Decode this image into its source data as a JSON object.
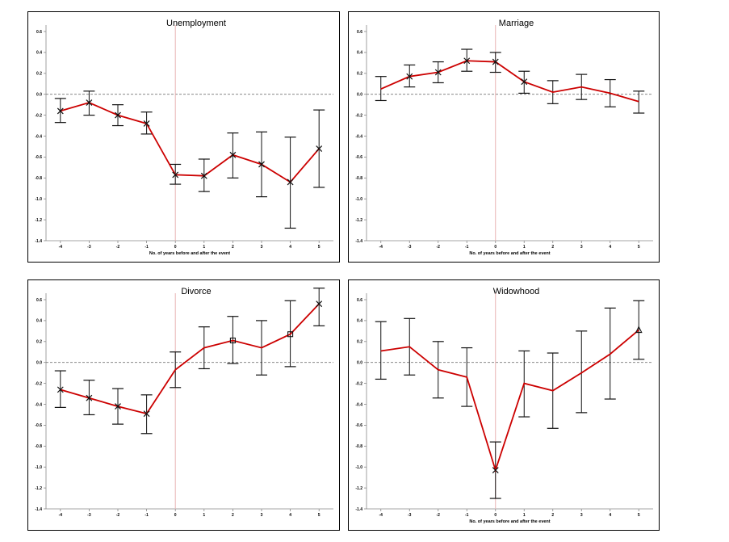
{
  "chart_data": [
    {
      "type": "line",
      "title": "Unemployment",
      "xlabel": "No. of years before and after the event",
      "ylabel": "",
      "ylim": [
        -1.4,
        0.6
      ],
      "x": [
        -4,
        -3,
        -2,
        -1,
        0,
        1,
        2,
        3,
        4,
        5
      ],
      "yticks": [
        "0.6",
        "0.4",
        "0.2",
        "0.0",
        "-0.2",
        "-0.4",
        "-0.6",
        "-0.8",
        "-1.0",
        "-1.2",
        "-1.4"
      ],
      "ytick_values": [
        0.6,
        0.4,
        0.2,
        0.0,
        -0.2,
        -0.4,
        -0.6,
        -0.8,
        -1.0,
        -1.2,
        -1.4
      ],
      "xticks": [
        "-4",
        "-3",
        "-2",
        "-1",
        "0",
        "1",
        "2",
        "3",
        "4",
        "5"
      ],
      "series": [
        {
          "values": [
            -0.16,
            -0.08,
            -0.2,
            -0.28,
            -0.77,
            -0.78,
            -0.58,
            -0.67,
            -0.84,
            -0.52
          ],
          "lower": [
            -0.27,
            -0.2,
            -0.3,
            -0.38,
            -0.86,
            -0.93,
            -0.8,
            -0.98,
            -1.28,
            -0.89
          ],
          "upper": [
            -0.04,
            0.03,
            -0.1,
            -0.17,
            -0.67,
            -0.62,
            -0.37,
            -0.36,
            -0.41,
            -0.15
          ],
          "markers": [
            "x",
            "x",
            "x",
            "x",
            "x",
            "x",
            "x",
            "x",
            "x",
            "x"
          ]
        }
      ],
      "reference_line_y": 0,
      "event_line_x": 0,
      "grid": false,
      "line_color": "#cc0000",
      "event_line_color": "#e8b4b4"
    },
    {
      "type": "line",
      "title": "Marriage",
      "xlabel": "No. of years before and after the event",
      "ylabel": "",
      "ylim": [
        -1.4,
        0.6
      ],
      "x": [
        -4,
        -3,
        -2,
        -1,
        0,
        1,
        2,
        3,
        4,
        5
      ],
      "yticks": [
        "0.6",
        "0.4",
        "0.2",
        "0.0",
        "-0.2",
        "-0.4",
        "-0.6",
        "-0.8",
        "-1.0",
        "-1.2",
        "-1.4"
      ],
      "ytick_values": [
        0.6,
        0.4,
        0.2,
        0.0,
        -0.2,
        -0.4,
        -0.6,
        -0.8,
        -1.0,
        -1.2,
        -1.4
      ],
      "xticks": [
        "-4",
        "-3",
        "-2",
        "-1",
        "0",
        "1",
        "2",
        "3",
        "4",
        "5"
      ],
      "series": [
        {
          "values": [
            0.05,
            0.17,
            0.21,
            0.32,
            0.31,
            0.12,
            0.02,
            0.07,
            0.01,
            -0.07
          ],
          "lower": [
            -0.06,
            0.07,
            0.11,
            0.22,
            0.21,
            0.01,
            -0.09,
            -0.05,
            -0.12,
            -0.18
          ],
          "upper": [
            0.17,
            0.28,
            0.31,
            0.43,
            0.4,
            0.22,
            0.13,
            0.19,
            0.14,
            0.03
          ],
          "markers": [
            "none",
            "x",
            "x",
            "x",
            "x",
            "x",
            "none",
            "none",
            "none",
            "none"
          ]
        }
      ],
      "reference_line_y": 0,
      "event_line_x": 0,
      "grid": false,
      "line_color": "#cc0000",
      "event_line_color": "#e8b4b4"
    },
    {
      "type": "line",
      "title": "Divorce",
      "xlabel": "",
      "ylabel": "",
      "ylim": [
        -1.4,
        0.6
      ],
      "x": [
        -4,
        -3,
        -2,
        -1,
        0,
        1,
        2,
        3,
        4,
        5
      ],
      "yticks": [
        "0.6",
        "0.4",
        "0.2",
        "0.0",
        "-0.2",
        "-0.4",
        "-0.6",
        "-0.8",
        "-1.0",
        "-1.2",
        "-1.4"
      ],
      "ytick_values": [
        0.6,
        0.4,
        0.2,
        0.0,
        -0.2,
        -0.4,
        -0.6,
        -0.8,
        -1.0,
        -1.2,
        -1.4
      ],
      "xticks": [
        "-4",
        "-3",
        "-2",
        "-1",
        "0",
        "1",
        "2",
        "3",
        "4",
        "5"
      ],
      "series": [
        {
          "values": [
            -0.26,
            -0.34,
            -0.42,
            -0.49,
            -0.07,
            0.14,
            0.21,
            0.14,
            0.27,
            0.56
          ],
          "lower": [
            -0.43,
            -0.5,
            -0.59,
            -0.68,
            -0.24,
            -0.06,
            -0.01,
            -0.12,
            -0.04,
            0.35
          ],
          "upper": [
            -0.08,
            -0.17,
            -0.25,
            -0.31,
            0.1,
            0.34,
            0.44,
            0.4,
            0.59,
            0.71
          ],
          "markers": [
            "x",
            "x",
            "x",
            "x",
            "none",
            "none",
            "square",
            "none",
            "square",
            "x"
          ]
        }
      ],
      "reference_line_y": 0,
      "event_line_x": 0,
      "grid": false,
      "line_color": "#cc0000",
      "event_line_color": "#e8b4b4"
    },
    {
      "type": "line",
      "title": "Widowhood",
      "xlabel": "No. of years before and after the event",
      "ylabel": "",
      "ylim": [
        -1.4,
        0.6
      ],
      "x": [
        -4,
        -3,
        -2,
        -1,
        0,
        1,
        2,
        3,
        4,
        5
      ],
      "yticks": [
        "0.6",
        "0.4",
        "0.2",
        "0.0",
        "-0.2",
        "-0.4",
        "-0.6",
        "-0.8",
        "-1.0",
        "-1.2",
        "-1.4"
      ],
      "ytick_values": [
        0.6,
        0.4,
        0.2,
        0.0,
        -0.2,
        -0.4,
        -0.6,
        -0.8,
        -1.0,
        -1.2,
        -1.4
      ],
      "xticks": [
        "-4",
        "-3",
        "-2",
        "-1",
        "0",
        "1",
        "2",
        "3",
        "4",
        "5"
      ],
      "series": [
        {
          "values": [
            0.11,
            0.15,
            -0.07,
            -0.14,
            -1.03,
            -0.2,
            -0.27,
            -0.1,
            0.08,
            0.31
          ],
          "lower": [
            -0.16,
            -0.12,
            -0.34,
            -0.42,
            -1.3,
            -0.52,
            -0.63,
            -0.48,
            -0.35,
            0.03
          ],
          "upper": [
            0.39,
            0.42,
            0.2,
            0.14,
            -0.76,
            0.11,
            0.09,
            0.3,
            0.52,
            0.59
          ],
          "markers": [
            "none",
            "none",
            "none",
            "none",
            "x",
            "none",
            "none",
            "none",
            "none",
            "triangle"
          ]
        }
      ],
      "reference_line_y": 0,
      "event_line_x": 0,
      "grid": false,
      "line_color": "#cc0000",
      "event_line_color": "#e8b4b4"
    }
  ]
}
